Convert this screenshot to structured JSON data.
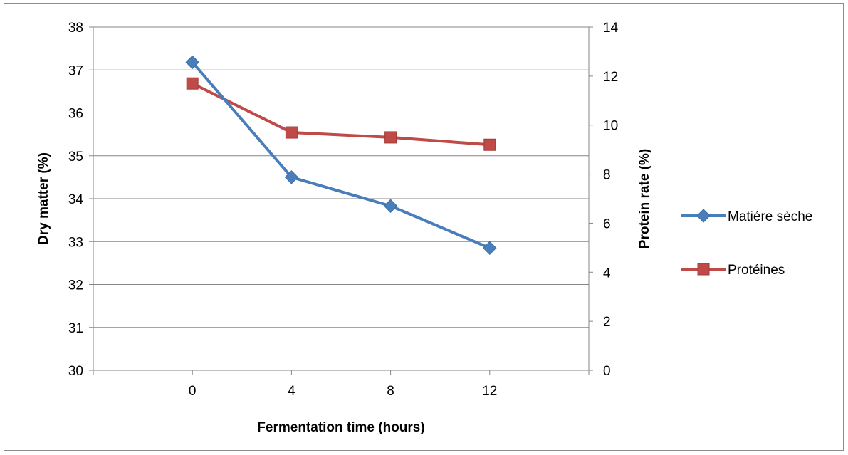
{
  "chart_data": {
    "type": "line",
    "categories": [
      "0",
      "4",
      "8",
      "12"
    ],
    "xlabel": "Fermentation time (hours)",
    "ylabel_left": "Dry matter  (%)",
    "ylabel_right": "Protein rate  (%)",
    "ylim_left": [
      30,
      38
    ],
    "ylim_right": [
      0,
      14
    ],
    "yticks_left": [
      "30",
      "31",
      "32",
      "33",
      "34",
      "35",
      "36",
      "37",
      "38"
    ],
    "yticks_right": [
      "0",
      "2",
      "4",
      "6",
      "8",
      "10",
      "12",
      "14"
    ],
    "grid": true,
    "legend_position": "right",
    "series": [
      {
        "name": "Matiére sèche",
        "axis": "left",
        "color": "#4a7ebb",
        "marker": "diamond",
        "values": [
          37.18,
          34.5,
          33.83,
          32.85
        ]
      },
      {
        "name": "Protéines",
        "axis": "right",
        "color": "#be4b48",
        "marker": "square",
        "values": [
          11.7,
          9.7,
          9.5,
          9.2
        ]
      }
    ]
  }
}
